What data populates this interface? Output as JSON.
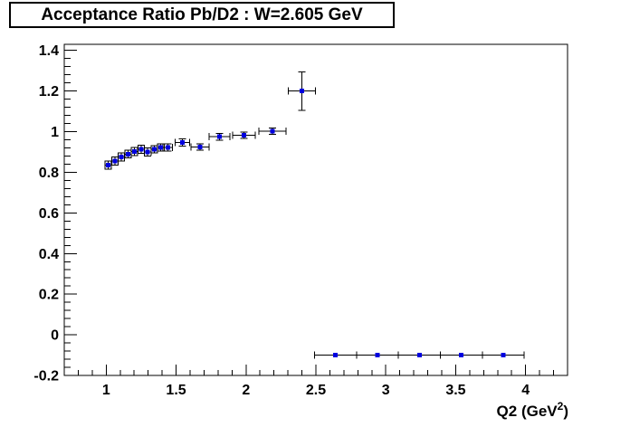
{
  "title_box": {
    "text": "Acceptance Ratio Pb/D2 : W=2.605 GeV"
  },
  "colors": {
    "marker": "#0000e0",
    "error_bar": "#000000",
    "axis": "#000000",
    "background": "#ffffff"
  },
  "chart_data": {
    "type": "scatter",
    "title": "Acceptance Ratio Pb/D2 : W=2.605 GeV",
    "xlabel": "Q2 (GeV^2)",
    "xlabel_parts": {
      "prefix": "Q2 (GeV",
      "sup": "2",
      "suffix": ")"
    },
    "ylabel": "",
    "xlim": [
      0.7,
      4.3
    ],
    "ylim": [
      -0.2,
      1.43
    ],
    "grid": false,
    "legend": "none",
    "x_major_ticks": [
      1,
      1.5,
      2,
      2.5,
      3,
      3.5,
      4
    ],
    "x_tick_labels": [
      "1",
      "1.5",
      "2",
      "2.5",
      "3",
      "3.5",
      "4"
    ],
    "x_minor_step": 0.1,
    "y_major_ticks": [
      -0.2,
      0,
      0.2,
      0.4,
      0.6,
      0.8,
      1,
      1.2,
      1.4
    ],
    "y_tick_labels": [
      "-0.2",
      "0",
      "0.2",
      "0.4",
      "0.6",
      "0.8",
      "1",
      "1.2",
      "1.4"
    ],
    "y_minor_step": 0.04,
    "series": [
      {
        "name": "acceptance-ratio-points",
        "marker": "square",
        "marker_color": "#0000e0",
        "points": [
          {
            "x": 1.015,
            "y": 0.835,
            "ex": 0.023,
            "ey": 0.02
          },
          {
            "x": 1.062,
            "y": 0.856,
            "ex": 0.023,
            "ey": 0.02
          },
          {
            "x": 1.109,
            "y": 0.876,
            "ex": 0.023,
            "ey": 0.02
          },
          {
            "x": 1.156,
            "y": 0.89,
            "ex": 0.023,
            "ey": 0.02
          },
          {
            "x": 1.203,
            "y": 0.902,
            "ex": 0.023,
            "ey": 0.02
          },
          {
            "x": 1.25,
            "y": 0.913,
            "ex": 0.023,
            "ey": 0.02
          },
          {
            "x": 1.297,
            "y": 0.901,
            "ex": 0.023,
            "ey": 0.02
          },
          {
            "x": 1.344,
            "y": 0.913,
            "ex": 0.023,
            "ey": 0.018
          },
          {
            "x": 1.391,
            "y": 0.922,
            "ex": 0.025,
            "ey": 0.018
          },
          {
            "x": 1.44,
            "y": 0.923,
            "ex": 0.035,
            "ey": 0.018
          },
          {
            "x": 1.545,
            "y": 0.946,
            "ex": 0.052,
            "ey": 0.018
          },
          {
            "x": 1.67,
            "y": 0.925,
            "ex": 0.065,
            "ey": 0.016
          },
          {
            "x": 1.81,
            "y": 0.975,
            "ex": 0.075,
            "ey": 0.016
          },
          {
            "x": 1.985,
            "y": 0.982,
            "ex": 0.08,
            "ey": 0.016
          },
          {
            "x": 2.19,
            "y": 1.002,
            "ex": 0.097,
            "ey": 0.016
          },
          {
            "x": 2.4,
            "y": 1.2,
            "ex": 0.098,
            "ey": 0.095
          },
          {
            "x": 2.64,
            "y": -0.1,
            "ex": 0.15,
            "ey": 0
          },
          {
            "x": 2.94,
            "y": -0.1,
            "ex": 0.15,
            "ey": 0
          },
          {
            "x": 3.24,
            "y": -0.1,
            "ex": 0.15,
            "ey": 0
          },
          {
            "x": 3.54,
            "y": -0.1,
            "ex": 0.15,
            "ey": 0
          },
          {
            "x": 3.84,
            "y": -0.1,
            "ex": 0.15,
            "ey": 0
          }
        ]
      }
    ]
  }
}
